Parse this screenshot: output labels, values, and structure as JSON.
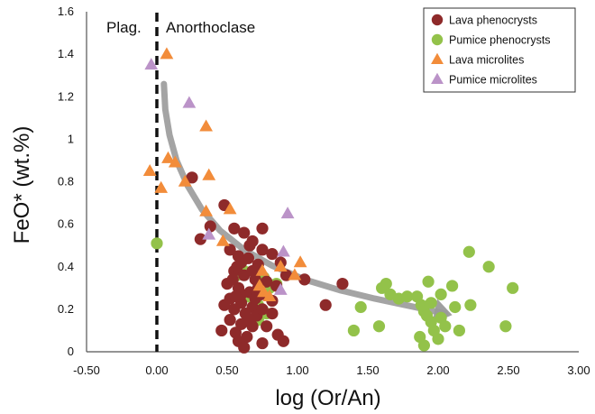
{
  "chart_data": {
    "type": "scatter",
    "xlabel": "log (Or/An)",
    "ylabel": "FeO* (wt.%)",
    "xlim": [
      -0.5,
      3.0
    ],
    "ylim": [
      0,
      1.6
    ],
    "xticks": [
      "-0.50",
      "0.00",
      "0.50",
      "1.00",
      "1.50",
      "2.00",
      "2.50",
      "3.00"
    ],
    "yticks": [
      "0",
      "0.2",
      "0.4",
      "0.6",
      "0.8",
      "1",
      "1.2",
      "1.4",
      "1.6"
    ],
    "grid": false,
    "legend_position": "top-right",
    "regions": {
      "left": "Plag.",
      "right": "Anorthoclase",
      "boundary_x": 0.0
    },
    "colors": {
      "lava_pheno": "#8e2a2a",
      "pumice_pheno": "#93c24a",
      "lava_micro": "#f28c3a",
      "pumice_micro": "#bb93c8",
      "trend": "#9a9a9a"
    },
    "trend_line": {
      "x": [
        0.05,
        0.06,
        0.09,
        0.14,
        0.22,
        0.32,
        0.45,
        0.62,
        0.82,
        1.05,
        1.3,
        1.55,
        1.8,
        2.05
      ],
      "y": [
        1.26,
        1.14,
        1.02,
        0.9,
        0.78,
        0.67,
        0.57,
        0.48,
        0.405,
        0.34,
        0.29,
        0.25,
        0.215,
        0.18
      ]
    },
    "series": [
      {
        "name": "Lava phenocrysts",
        "marker": "circle",
        "points": [
          [
            0.25,
            0.82
          ],
          [
            0.31,
            0.53
          ],
          [
            0.38,
            0.59
          ],
          [
            0.48,
            0.69
          ],
          [
            0.55,
            0.58
          ],
          [
            0.62,
            0.56
          ],
          [
            0.68,
            0.52
          ],
          [
            0.75,
            0.48
          ],
          [
            0.82,
            0.46
          ],
          [
            0.88,
            0.42
          ],
          [
            0.75,
            0.58
          ],
          [
            0.52,
            0.48
          ],
          [
            0.58,
            0.45
          ],
          [
            0.65,
            0.44
          ],
          [
            0.72,
            0.41
          ],
          [
            0.55,
            0.38
          ],
          [
            0.62,
            0.36
          ],
          [
            0.7,
            0.34
          ],
          [
            0.78,
            0.33
          ],
          [
            0.85,
            0.31
          ],
          [
            0.5,
            0.32
          ],
          [
            0.58,
            0.3
          ],
          [
            0.66,
            0.28
          ],
          [
            0.74,
            0.27
          ],
          [
            0.82,
            0.24
          ],
          [
            0.52,
            0.25
          ],
          [
            0.6,
            0.23
          ],
          [
            0.68,
            0.21
          ],
          [
            0.55,
            0.2
          ],
          [
            0.63,
            0.18
          ],
          [
            0.71,
            0.17
          ],
          [
            0.52,
            0.15
          ],
          [
            0.6,
            0.13
          ],
          [
            0.68,
            0.12
          ],
          [
            0.56,
            0.09
          ],
          [
            0.64,
            0.07
          ],
          [
            0.58,
            0.05
          ],
          [
            0.62,
            0.02
          ],
          [
            0.46,
            0.1
          ],
          [
            0.78,
            0.12
          ],
          [
            0.86,
            0.08
          ],
          [
            0.75,
            0.04
          ],
          [
            0.9,
            0.05
          ],
          [
            0.92,
            0.36
          ],
          [
            1.05,
            0.34
          ],
          [
            1.2,
            0.22
          ],
          [
            1.32,
            0.32
          ],
          [
            0.57,
            0.4
          ],
          [
            0.66,
            0.5
          ],
          [
            0.6,
            0.27
          ],
          [
            0.54,
            0.34
          ],
          [
            0.7,
            0.25
          ],
          [
            0.48,
            0.22
          ],
          [
            0.75,
            0.2
          ],
          [
            0.66,
            0.15
          ],
          [
            0.82,
            0.18
          ],
          [
            0.6,
            0.42
          ],
          [
            0.68,
            0.38
          ],
          [
            0.56,
            0.26
          ],
          [
            0.72,
            0.3
          ]
        ]
      },
      {
        "name": "Pumice phenocrysts",
        "marker": "circle",
        "points": [
          [
            0.0,
            0.51
          ],
          [
            0.57,
            0.36
          ],
          [
            0.62,
            0.38
          ],
          [
            0.65,
            0.26
          ],
          [
            0.72,
            0.22
          ],
          [
            0.76,
            0.35
          ],
          [
            0.8,
            0.3
          ],
          [
            0.78,
            0.18
          ],
          [
            0.72,
            0.15
          ],
          [
            0.85,
            0.32
          ],
          [
            1.4,
            0.1
          ],
          [
            1.45,
            0.21
          ],
          [
            1.58,
            0.12
          ],
          [
            1.6,
            0.3
          ],
          [
            1.63,
            0.32
          ],
          [
            1.66,
            0.27
          ],
          [
            1.72,
            0.25
          ],
          [
            1.78,
            0.26
          ],
          [
            1.85,
            0.26
          ],
          [
            1.88,
            0.22
          ],
          [
            1.9,
            0.19
          ],
          [
            1.92,
            0.17
          ],
          [
            1.93,
            0.33
          ],
          [
            1.95,
            0.14
          ],
          [
            1.97,
            0.1
          ],
          [
            1.9,
            0.03
          ],
          [
            2.0,
            0.06
          ],
          [
            2.02,
            0.16
          ],
          [
            2.05,
            0.12
          ],
          [
            2.1,
            0.31
          ],
          [
            2.12,
            0.21
          ],
          [
            2.15,
            0.1
          ],
          [
            2.22,
            0.47
          ],
          [
            2.23,
            0.22
          ],
          [
            2.36,
            0.4
          ],
          [
            2.48,
            0.12
          ],
          [
            2.53,
            0.3
          ],
          [
            1.87,
            0.07
          ],
          [
            1.95,
            0.23
          ],
          [
            2.02,
            0.27
          ]
        ]
      },
      {
        "name": "Lava microlites",
        "marker": "triangle",
        "points": [
          [
            0.07,
            1.4
          ],
          [
            -0.05,
            0.85
          ],
          [
            0.03,
            0.77
          ],
          [
            0.08,
            0.91
          ],
          [
            0.13,
            0.89
          ],
          [
            0.2,
            0.8
          ],
          [
            0.35,
            1.06
          ],
          [
            0.37,
            0.83
          ],
          [
            0.35,
            0.66
          ],
          [
            0.47,
            0.52
          ],
          [
            0.52,
            0.67
          ],
          [
            0.73,
            0.31
          ],
          [
            0.76,
            0.28
          ],
          [
            0.8,
            0.26
          ],
          [
            0.75,
            0.38
          ],
          [
            0.88,
            0.4
          ],
          [
            1.02,
            0.42
          ],
          [
            0.98,
            0.36
          ]
        ]
      },
      {
        "name": "Pumice microlites",
        "marker": "triangle",
        "points": [
          [
            -0.04,
            1.35
          ],
          [
            0.23,
            1.17
          ],
          [
            0.37,
            0.55
          ],
          [
            0.9,
            0.47
          ],
          [
            0.93,
            0.65
          ],
          [
            0.88,
            0.29
          ]
        ]
      }
    ]
  }
}
